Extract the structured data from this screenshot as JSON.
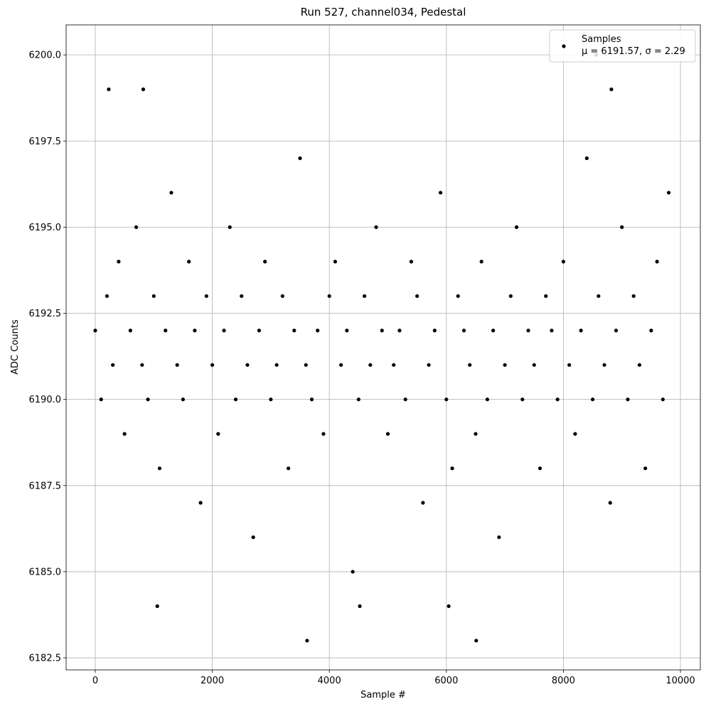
{
  "chart_data": {
    "type": "scatter",
    "title": "Run 527, channel034, Pedestal",
    "x_label": "Sample #",
    "y_label": "ADC Counts",
    "xlim": [
      -498,
      10340
    ],
    "ylim": [
      6182.15,
      6200.87
    ],
    "xticks": [
      0,
      2000,
      4000,
      6000,
      8000,
      10000
    ],
    "yticks": [
      6182.5,
      {
        "value": 6185,
        "label": "6185.0"
      },
      6187.5,
      {
        "value": 6190,
        "label": "6190.0"
      },
      6192.5,
      {
        "value": 6195,
        "label": "6195.0"
      },
      6197.5,
      {
        "value": 6200,
        "label": "6200.0"
      }
    ],
    "grid": true,
    "legend_position": "upper right",
    "legend_note": "μ = 6191.57, σ = 2.29",
    "series": [
      {
        "name": "Samples",
        "color": "#000000",
        "x": [
          0,
          100,
          200,
          300,
          400,
          500,
          600,
          700,
          800,
          900,
          1000,
          1100,
          1200,
          1300,
          1400,
          1500,
          1600,
          1700,
          1800,
          1900,
          2000,
          2100,
          2200,
          2300,
          2400,
          2500,
          2600,
          2700,
          2800,
          2900,
          3000,
          3100,
          3200,
          3300,
          3400,
          3500,
          3600,
          3700,
          3800,
          3900,
          4000,
          4100,
          4200,
          4300,
          4400,
          4500,
          4600,
          4700,
          4800,
          4900,
          5000,
          5100,
          5200,
          5300,
          5400,
          5500,
          5600,
          5700,
          5800,
          5900,
          6000,
          6100,
          6200,
          6300,
          6400,
          6500,
          6600,
          6700,
          6800,
          6900,
          7000,
          7100,
          7200,
          7300,
          7400,
          7500,
          7600,
          7700,
          7800,
          7900,
          8000,
          8100,
          8200,
          8300,
          8400,
          8500,
          8600,
          8700,
          8800,
          8900,
          9000,
          9100,
          9200,
          9300,
          9400,
          9500,
          9600,
          9700,
          9800,
          230,
          820,
          8820,
          8560,
          3620,
          6510,
          1060,
          4520,
          6040
        ],
        "values": [
          6192,
          6190,
          6193,
          6191,
          6194,
          6189,
          6192,
          6195,
          6191,
          6190,
          6193,
          6188,
          6192,
          6196,
          6191,
          6190,
          6194,
          6192,
          6187,
          6193,
          6191,
          6189,
          6192,
          6195,
          6190,
          6193,
          6191,
          6186,
          6192,
          6194,
          6190,
          6191,
          6193,
          6188,
          6192,
          6197,
          6191,
          6190,
          6192,
          6189,
          6193,
          6194,
          6191,
          6192,
          6185,
          6190,
          6193,
          6191,
          6195,
          6192,
          6189,
          6191,
          6192,
          6190,
          6194,
          6193,
          6187,
          6191,
          6192,
          6196,
          6190,
          6188,
          6193,
          6192,
          6191,
          6189,
          6194,
          6190,
          6192,
          6186,
          6191,
          6193,
          6195,
          6190,
          6192,
          6191,
          6188,
          6193,
          6192,
          6190,
          6194,
          6191,
          6189,
          6192,
          6197,
          6190,
          6193,
          6191,
          6187,
          6192,
          6195,
          6190,
          6193,
          6191,
          6188,
          6192,
          6194,
          6190,
          6196,
          6199,
          6199,
          6199,
          6200,
          6183,
          6183,
          6184,
          6184,
          6184
        ]
      }
    ]
  }
}
